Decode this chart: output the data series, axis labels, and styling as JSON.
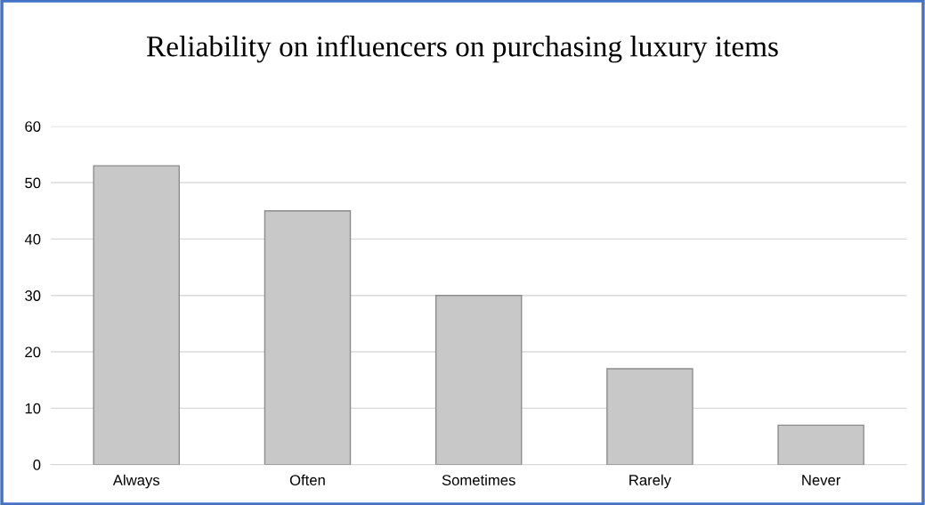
{
  "chart_data": {
    "type": "bar",
    "title": "Reliability on influencers on purchasing luxury items",
    "categories": [
      "Always",
      "Often",
      "Sometimes",
      "Rarely",
      "Never"
    ],
    "values": [
      53,
      45,
      30,
      17,
      7
    ],
    "color": "#c8c8c8",
    "ylim": [
      0,
      60
    ],
    "yticks": [
      0,
      10,
      20,
      30,
      40,
      50,
      60
    ],
    "grid": "y"
  }
}
